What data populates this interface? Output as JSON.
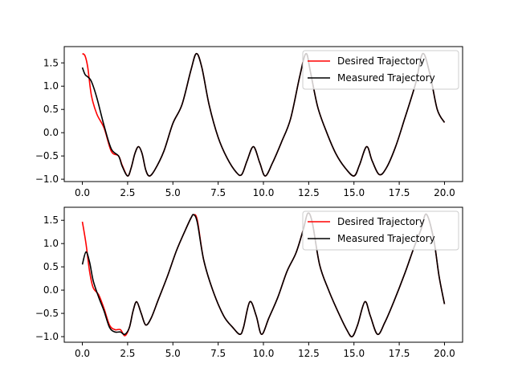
{
  "chart_data": [
    {
      "type": "line",
      "title": "",
      "xlabel": "",
      "ylabel": "",
      "xlim": [
        -1.0,
        21.0
      ],
      "ylim": [
        -1.05,
        1.85
      ],
      "xticks": [
        0,
        2.5,
        5,
        7.5,
        10,
        12.5,
        15,
        17.5,
        20
      ],
      "xtick_labels": [
        "0.0",
        "2.5",
        "5.0",
        "7.5",
        "10.0",
        "12.5",
        "15.0",
        "17.5",
        "20.0"
      ],
      "yticks": [
        -1.0,
        -0.5,
        0.0,
        0.5,
        1.0,
        1.5
      ],
      "ytick_labels": [
        "−1.0",
        "−0.5",
        "0.0",
        "0.5",
        "1.0",
        "1.5"
      ],
      "grid": false,
      "legend_position": "top-right",
      "series": [
        {
          "name": "Desired Trajectory",
          "color": "#ff0000",
          "x": [
            0.0,
            0.15,
            0.3,
            0.5,
            0.8,
            1.2,
            1.6,
            2.0,
            2.2,
            2.5,
            2.7,
            2.9,
            3.1,
            3.3,
            3.5,
            3.7,
            4.0,
            4.5,
            5.0,
            5.5,
            6.0,
            6.3,
            6.6,
            7.0,
            7.5,
            8.0,
            8.5,
            8.8,
            9.1,
            9.45,
            9.8,
            10.1,
            10.5,
            11.0,
            11.5,
            12.0,
            12.35,
            12.6,
            13.0,
            13.5,
            14.0,
            14.5,
            15.0,
            15.3,
            15.7,
            16.0,
            16.4,
            16.8,
            17.3,
            17.8,
            18.4,
            18.8,
            19.2,
            19.6,
            20.0
          ],
          "values": [
            1.7,
            1.65,
            1.4,
            0.8,
            0.4,
            0.1,
            -0.4,
            -0.5,
            -0.7,
            -0.93,
            -0.75,
            -0.45,
            -0.3,
            -0.45,
            -0.8,
            -0.93,
            -0.8,
            -0.4,
            0.2,
            0.6,
            1.35,
            1.7,
            1.4,
            0.6,
            -0.1,
            -0.55,
            -0.85,
            -0.9,
            -0.6,
            -0.3,
            -0.65,
            -0.93,
            -0.65,
            -0.2,
            0.3,
            1.2,
            1.7,
            1.3,
            0.55,
            0.0,
            -0.45,
            -0.75,
            -0.93,
            -0.7,
            -0.3,
            -0.6,
            -0.9,
            -0.75,
            -0.3,
            0.3,
            1.05,
            1.7,
            1.25,
            0.5,
            0.22
          ]
        },
        {
          "name": "Measured Trajectory",
          "color": "#000000",
          "x": [
            0.0,
            0.15,
            0.3,
            0.5,
            0.8,
            1.2,
            1.6,
            2.0,
            2.2,
            2.5,
            2.7,
            2.9,
            3.1,
            3.3,
            3.5,
            3.7,
            4.0,
            4.5,
            5.0,
            5.5,
            6.0,
            6.3,
            6.6,
            7.0,
            7.5,
            8.0,
            8.5,
            8.8,
            9.1,
            9.45,
            9.8,
            10.1,
            10.5,
            11.0,
            11.5,
            12.0,
            12.35,
            12.6,
            13.0,
            13.5,
            14.0,
            14.5,
            15.0,
            15.3,
            15.7,
            16.0,
            16.4,
            16.8,
            17.3,
            17.8,
            18.4,
            18.8,
            19.2,
            19.6,
            20.0
          ],
          "values": [
            1.4,
            1.25,
            1.2,
            1.1,
            0.75,
            0.15,
            -0.35,
            -0.5,
            -0.72,
            -0.93,
            -0.75,
            -0.45,
            -0.3,
            -0.45,
            -0.8,
            -0.93,
            -0.8,
            -0.4,
            0.2,
            0.6,
            1.35,
            1.7,
            1.4,
            0.6,
            -0.1,
            -0.55,
            -0.85,
            -0.9,
            -0.6,
            -0.3,
            -0.65,
            -0.93,
            -0.65,
            -0.2,
            0.3,
            1.2,
            1.7,
            1.3,
            0.55,
            0.0,
            -0.45,
            -0.75,
            -0.93,
            -0.7,
            -0.3,
            -0.6,
            -0.9,
            -0.75,
            -0.3,
            0.3,
            1.05,
            1.7,
            1.25,
            0.5,
            0.22
          ]
        }
      ]
    },
    {
      "type": "line",
      "title": "",
      "xlabel": "",
      "ylabel": "",
      "xlim": [
        -1.0,
        21.0
      ],
      "ylim": [
        -1.12,
        1.78
      ],
      "xticks": [
        0,
        2.5,
        5,
        7.5,
        10,
        12.5,
        15,
        17.5,
        20
      ],
      "xtick_labels": [
        "0.0",
        "2.5",
        "5.0",
        "7.5",
        "10.0",
        "12.5",
        "15.0",
        "17.5",
        "20.0"
      ],
      "yticks": [
        -1.0,
        -0.5,
        0.0,
        0.5,
        1.0,
        1.5
      ],
      "ytick_labels": [
        "−1.0",
        "−0.5",
        "0.0",
        "0.5",
        "1.0",
        "1.5"
      ],
      "grid": false,
      "legend_position": "top-right",
      "series": [
        {
          "name": "Desired Trajectory",
          "color": "#ff0000",
          "x": [
            0.0,
            0.2,
            0.4,
            0.6,
            0.9,
            1.2,
            1.5,
            1.8,
            2.1,
            2.35,
            2.6,
            2.8,
            3.0,
            3.25,
            3.5,
            3.8,
            4.2,
            4.7,
            5.2,
            5.7,
            6.0,
            6.15,
            6.35,
            6.7,
            7.2,
            7.8,
            8.3,
            8.7,
            8.9,
            9.25,
            9.6,
            9.9,
            10.3,
            10.8,
            11.3,
            11.8,
            12.2,
            12.45,
            12.7,
            13.1,
            13.6,
            14.1,
            14.6,
            14.9,
            15.2,
            15.6,
            15.9,
            16.3,
            16.7,
            17.2,
            17.8,
            18.3,
            18.7,
            19.0,
            19.4,
            19.7,
            20.0
          ],
          "values": [
            1.47,
            1.0,
            0.4,
            0.05,
            -0.1,
            -0.4,
            -0.75,
            -0.85,
            -0.85,
            -0.98,
            -0.8,
            -0.45,
            -0.25,
            -0.5,
            -0.75,
            -0.6,
            -0.2,
            0.3,
            0.85,
            1.3,
            1.55,
            1.62,
            1.5,
            0.65,
            0.0,
            -0.55,
            -0.8,
            -0.95,
            -0.8,
            -0.25,
            -0.55,
            -0.95,
            -0.6,
            -0.15,
            0.4,
            0.8,
            1.3,
            1.65,
            1.45,
            0.55,
            0.0,
            -0.45,
            -0.85,
            -1.0,
            -0.75,
            -0.25,
            -0.55,
            -0.95,
            -0.7,
            -0.25,
            0.35,
            0.9,
            1.3,
            1.63,
            1.1,
            0.3,
            -0.3
          ]
        },
        {
          "name": "Measured Trajectory",
          "color": "#000000",
          "x": [
            0.0,
            0.2,
            0.4,
            0.6,
            0.9,
            1.2,
            1.5,
            1.8,
            2.1,
            2.35,
            2.6,
            2.8,
            3.0,
            3.25,
            3.5,
            3.8,
            4.2,
            4.7,
            5.2,
            5.7,
            6.0,
            6.15,
            6.35,
            6.7,
            7.2,
            7.8,
            8.3,
            8.7,
            8.9,
            9.25,
            9.6,
            9.9,
            10.3,
            10.8,
            11.3,
            11.8,
            12.2,
            12.45,
            12.7,
            13.1,
            13.6,
            14.1,
            14.6,
            14.9,
            15.2,
            15.6,
            15.9,
            16.3,
            16.7,
            17.2,
            17.8,
            18.3,
            18.7,
            19.0,
            19.4,
            19.7,
            20.0
          ],
          "values": [
            0.55,
            0.82,
            0.6,
            0.2,
            -0.15,
            -0.45,
            -0.8,
            -0.9,
            -0.9,
            -0.95,
            -0.8,
            -0.45,
            -0.25,
            -0.5,
            -0.75,
            -0.6,
            -0.2,
            0.3,
            0.85,
            1.3,
            1.55,
            1.62,
            1.45,
            0.65,
            0.0,
            -0.55,
            -0.8,
            -0.95,
            -0.8,
            -0.25,
            -0.55,
            -0.95,
            -0.6,
            -0.15,
            0.4,
            0.8,
            1.3,
            1.65,
            1.45,
            0.55,
            0.0,
            -0.45,
            -0.85,
            -1.0,
            -0.75,
            -0.25,
            -0.55,
            -0.95,
            -0.7,
            -0.25,
            0.35,
            0.9,
            1.3,
            1.63,
            1.1,
            0.3,
            -0.3
          ]
        }
      ]
    }
  ]
}
